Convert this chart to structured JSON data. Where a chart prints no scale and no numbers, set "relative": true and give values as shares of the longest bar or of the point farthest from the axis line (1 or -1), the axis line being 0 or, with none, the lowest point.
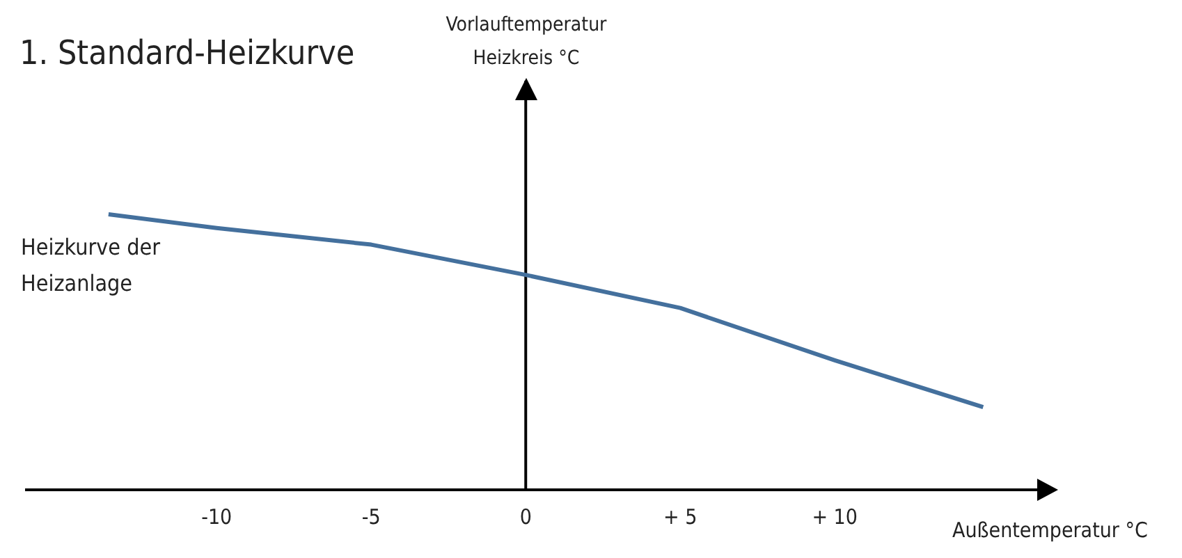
{
  "chart_data": {
    "type": "line",
    "title": "1. Standard-Heizkurve",
    "xlabel": "Außentemperatur °C",
    "annotations": [
      "Vorlauftemperatur Heizkreis °C"
    ],
    "relative": true,
    "xlim": [
      -16.2,
      17
    ],
    "xticks": [
      {
        "value": -10,
        "label": "-10"
      },
      {
        "value": -5,
        "label": "-5"
      },
      {
        "value": 0,
        "label": "0"
      },
      {
        "value": 5,
        "label": "+ 5"
      },
      {
        "value": 10,
        "label": "+ 10"
      }
    ],
    "series": [
      {
        "name": "Heizkurve der Heizanlage",
        "color": "#44709d",
        "x": [
          -13.5,
          -10,
          -5,
          0,
          5,
          10,
          14.8
        ],
        "values": [
          1,
          0.95,
          0.89,
          0.78,
          0.66,
          0.47,
          0.3
        ]
      }
    ],
    "ref_lines": [
      {
        "axis": "x",
        "value": 0
      }
    ],
    "grid": false,
    "legend": false,
    "marker": "none",
    "line_style": "solid"
  }
}
